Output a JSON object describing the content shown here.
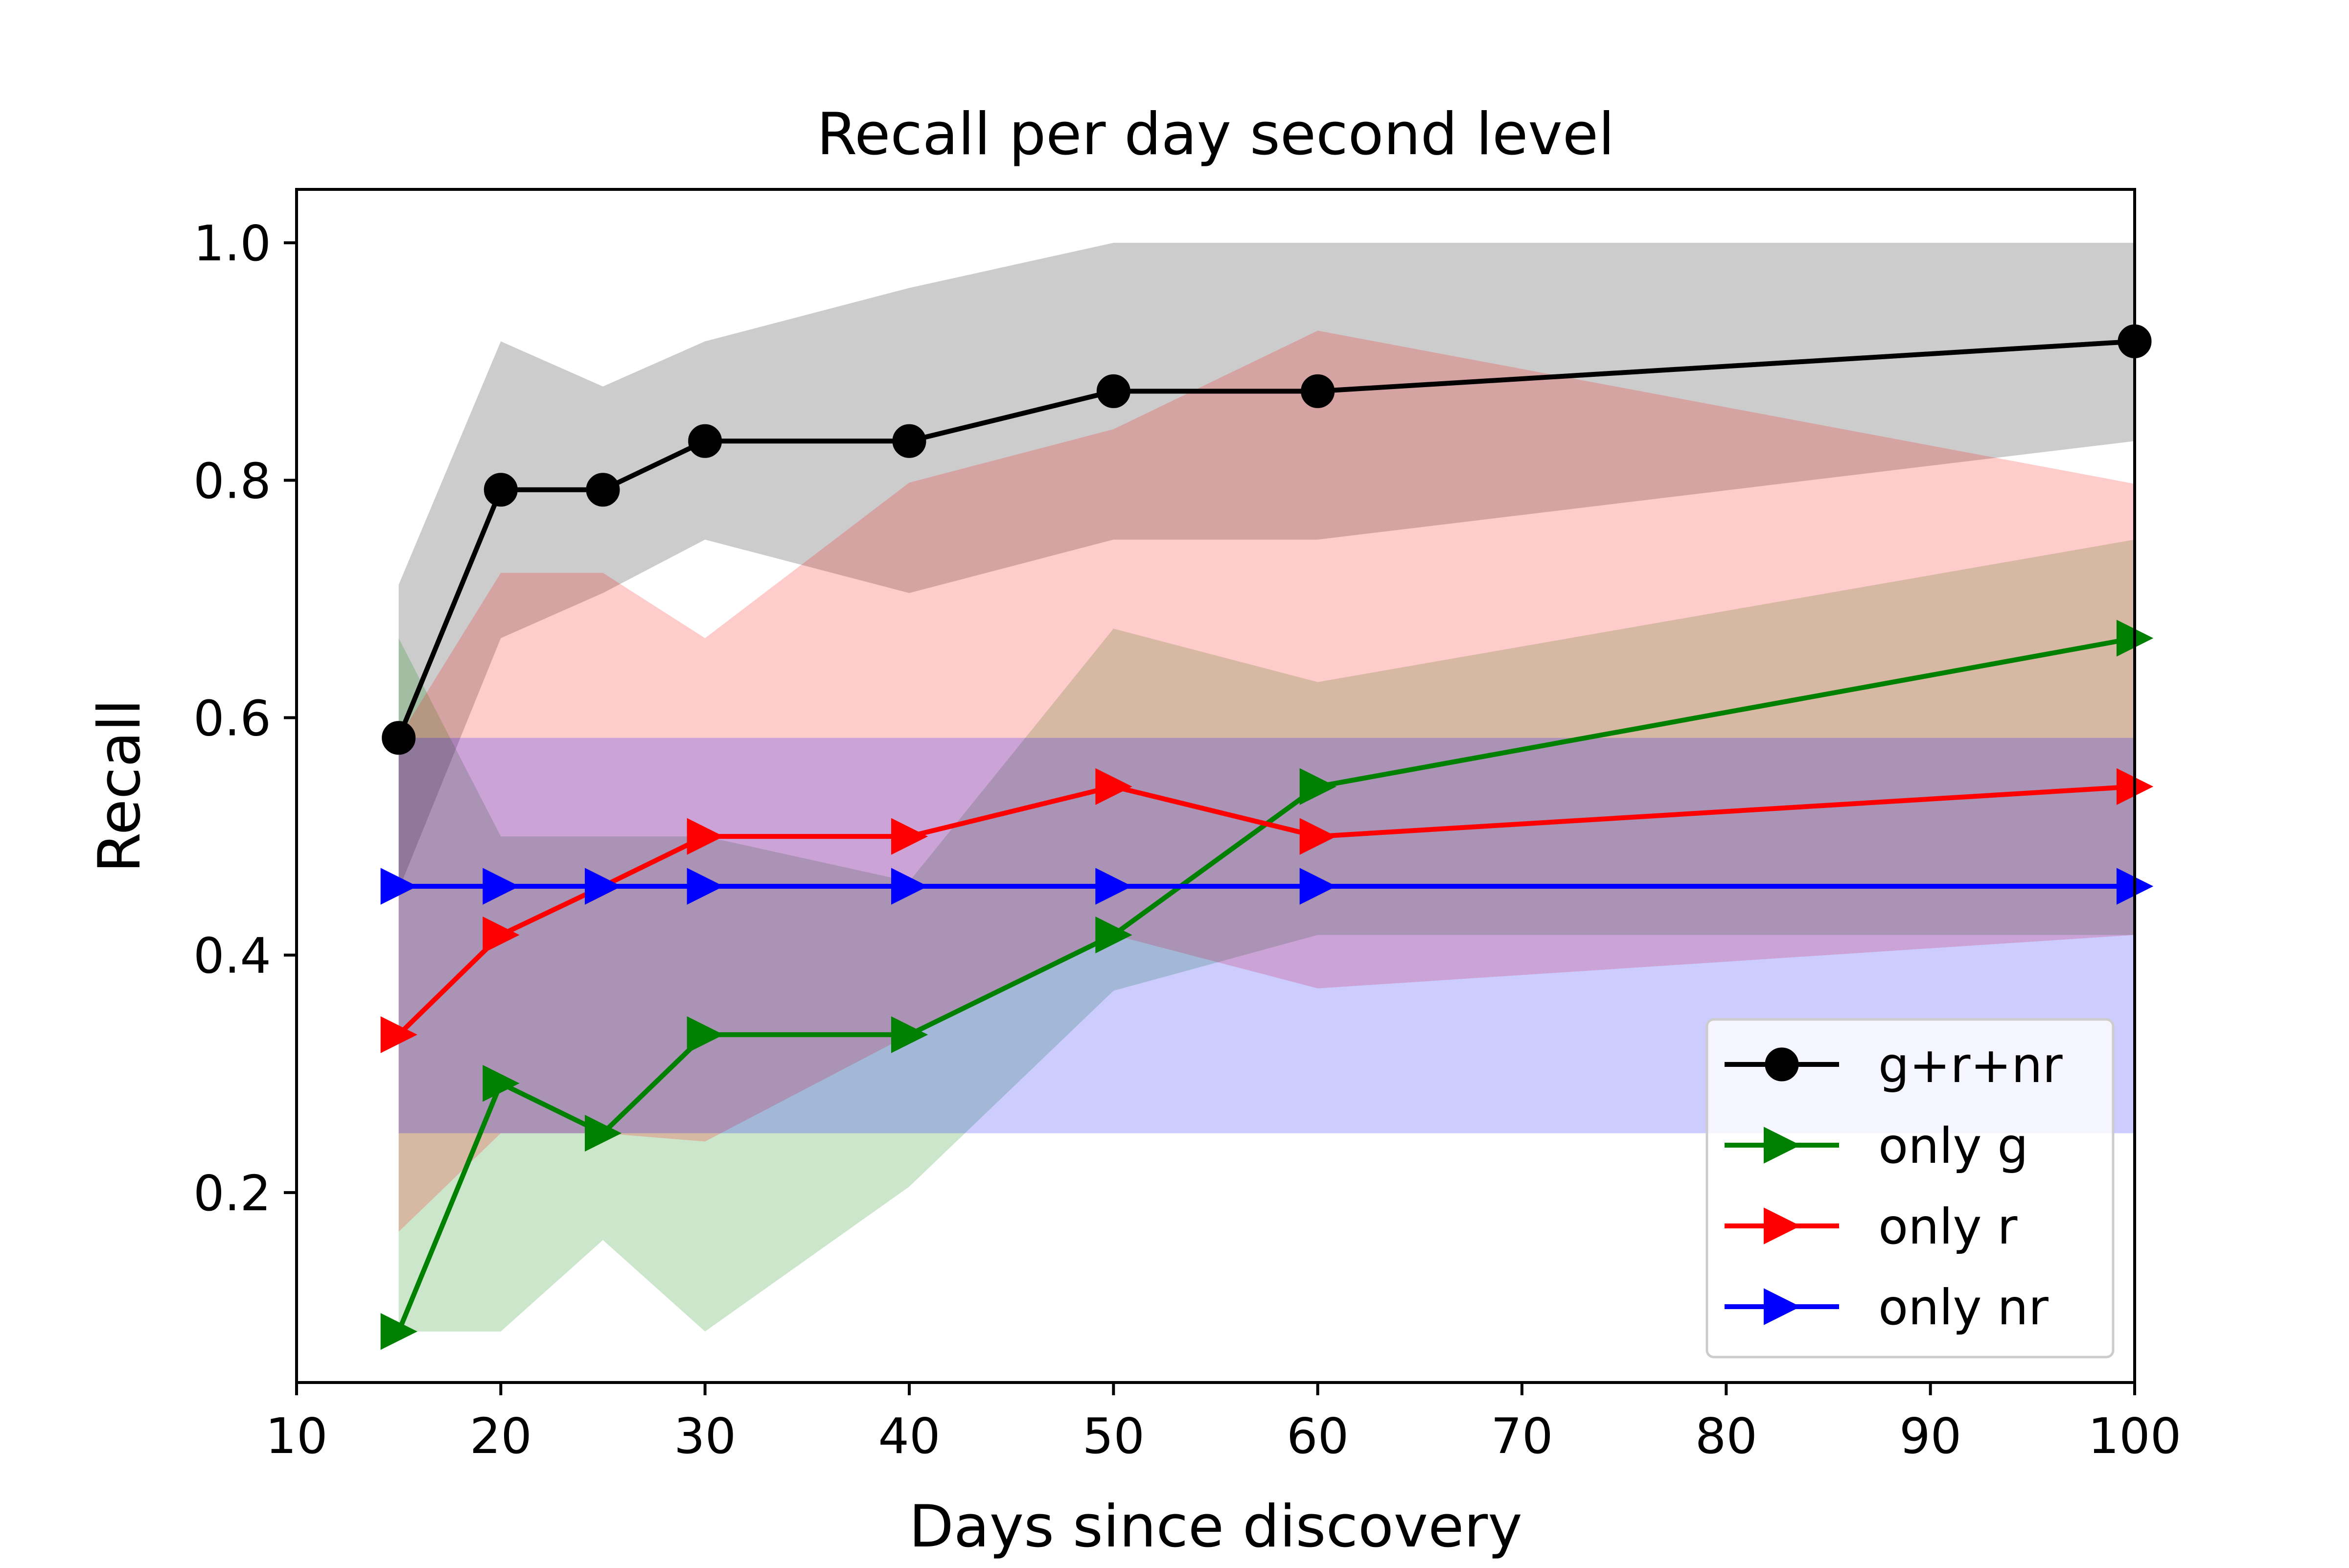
{
  "chart_data": {
    "type": "line",
    "title": "Recall per day second level",
    "xlabel": "Days since discovery",
    "ylabel": "Recall",
    "xlim": [
      10,
      100
    ],
    "ylim": [
      0.04,
      1.045
    ],
    "x_ticks": [
      10,
      20,
      30,
      40,
      50,
      60,
      70,
      80,
      90,
      100
    ],
    "y_ticks": [
      0.2,
      0.4,
      0.6,
      0.8,
      1.0
    ],
    "x_tick_labels": [
      "10",
      "20",
      "30",
      "40",
      "50",
      "60",
      "70",
      "80",
      "90",
      "100"
    ],
    "y_tick_labels": [
      "0.2",
      "0.4",
      "0.6",
      "0.8",
      "1.0"
    ],
    "grid": false,
    "legend_position": "lower right",
    "x": [
      15,
      20,
      25,
      30,
      40,
      50,
      60,
      100
    ],
    "series": [
      {
        "name": "g+r+nr",
        "color": "#000000",
        "marker": "circle",
        "values": [
          0.583,
          0.792,
          0.792,
          0.833,
          0.833,
          0.875,
          0.875,
          0.917
        ],
        "band_lower": [
          0.455,
          0.667,
          0.705,
          0.75,
          0.705,
          0.75,
          0.75,
          0.833
        ],
        "band_upper": [
          0.712,
          0.917,
          0.879,
          0.917,
          0.962,
          1.0,
          1.0,
          1.0
        ]
      },
      {
        "name": "only g",
        "color": "#008000",
        "marker": "triangle-right",
        "values": [
          0.083,
          0.292,
          0.25,
          0.333,
          0.333,
          0.417,
          0.542,
          0.667
        ],
        "band_lower": [
          0.083,
          0.083,
          0.16,
          0.083,
          0.205,
          0.37,
          0.417,
          0.417
        ],
        "band_upper": [
          0.667,
          0.5,
          0.5,
          0.5,
          0.462,
          0.675,
          0.63,
          0.75
        ]
      },
      {
        "name": "only r",
        "color": "#ff0000",
        "marker": "triangle-right",
        "values": [
          0.333,
          0.417,
          0.458,
          0.5,
          0.5,
          0.542,
          0.5,
          0.542
        ],
        "band_lower": [
          0.167,
          0.25,
          0.25,
          0.243,
          0.333,
          0.417,
          0.372,
          0.417
        ],
        "band_upper": [
          0.583,
          0.722,
          0.722,
          0.667,
          0.798,
          0.843,
          0.926,
          0.797
        ]
      },
      {
        "name": "only nr",
        "color": "#0000ff",
        "marker": "triangle-right",
        "values": [
          0.458,
          0.458,
          0.458,
          0.458,
          0.458,
          0.458,
          0.458,
          0.458
        ],
        "band_lower": [
          0.25,
          0.25,
          0.25,
          0.25,
          0.25,
          0.25,
          0.25,
          0.25
        ],
        "band_upper": [
          0.583,
          0.583,
          0.583,
          0.583,
          0.583,
          0.583,
          0.583,
          0.583
        ]
      }
    ]
  }
}
